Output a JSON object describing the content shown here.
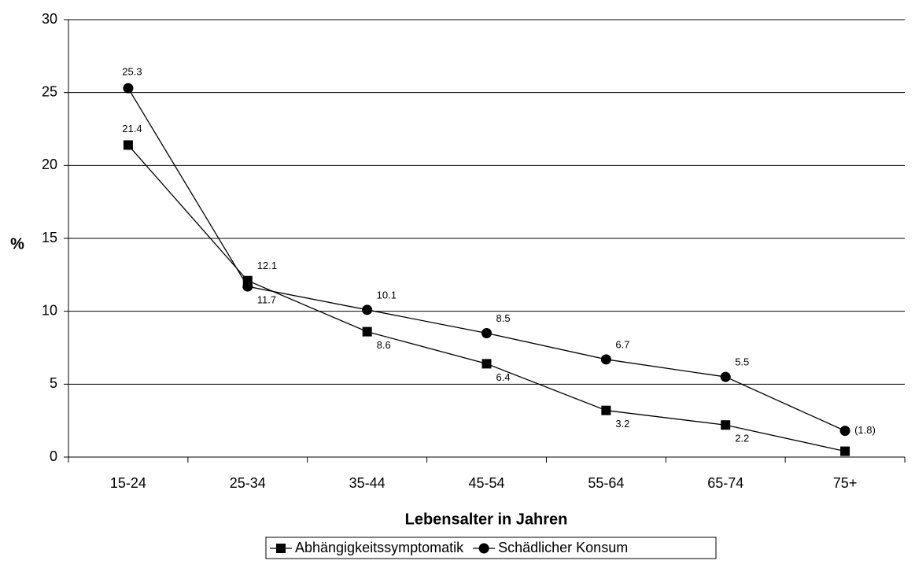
{
  "chart_data": {
    "type": "line",
    "y_label": "%",
    "x_label": "Lebensalter in Jahren",
    "categories": [
      "15-24",
      "25-34",
      "35-44",
      "45-54",
      "55-64",
      "65-74",
      "75+"
    ],
    "series": [
      {
        "name": "Abhängigkeitssymptomatik",
        "marker": "square",
        "color": "#000000",
        "values": [
          21.4,
          12.1,
          8.6,
          6.4,
          3.2,
          2.2,
          0.4
        ],
        "value_labels": [
          "21.4",
          "12.1",
          "8.6",
          "6.4",
          "3.2",
          "2.2",
          null
        ]
      },
      {
        "name": "Schädlicher Konsum",
        "marker": "circle",
        "color": "#000000",
        "values": [
          25.3,
          11.7,
          10.1,
          8.5,
          6.7,
          5.5,
          1.8
        ],
        "value_labels": [
          "25.3",
          "11.7",
          "10.1",
          "8.5",
          "6.7",
          "5.5",
          "(1.8)"
        ]
      }
    ],
    "ylim": [
      0,
      30
    ],
    "yticks": [
      0,
      5,
      10,
      15,
      20,
      25,
      30
    ],
    "grid": true,
    "legend": "bottom"
  }
}
